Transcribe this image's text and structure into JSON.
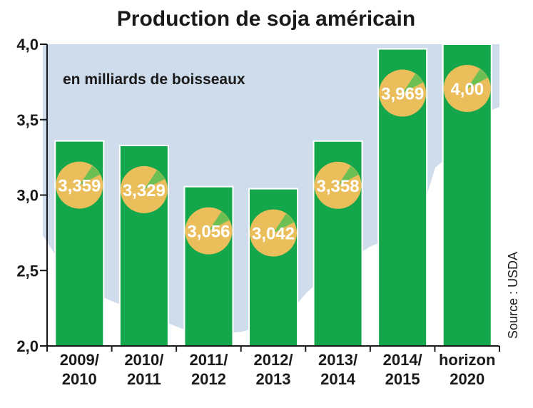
{
  "chart_data": {
    "type": "bar",
    "title": "Production de soja américain",
    "subtitle": "en milliards de boisseaux",
    "source": "Source : USDA",
    "categories": [
      [
        "2009/",
        "2010"
      ],
      [
        "2010/",
        "2011"
      ],
      [
        "2011/",
        "2012"
      ],
      [
        "2012/",
        "2013"
      ],
      [
        "2013/",
        "2014"
      ],
      [
        "2014/",
        "2015"
      ],
      [
        "horizon",
        "2020"
      ]
    ],
    "values": [
      3.359,
      3.329,
      3.056,
      3.042,
      3.358,
      3.969,
      4.0
    ],
    "value_labels": [
      "3,359",
      "3,329",
      "3,056",
      "3,042",
      "3,358",
      "3,969",
      "4,00"
    ],
    "ylim": [
      2.0,
      4.0
    ],
    "yticks": [
      {
        "value": 2.0,
        "label": "2,0"
      },
      {
        "value": 2.5,
        "label": "2,5"
      },
      {
        "value": 3.0,
        "label": "3,0"
      },
      {
        "value": 3.5,
        "label": "3,5"
      },
      {
        "value": 4.0,
        "label": "4,0"
      }
    ],
    "grid": false,
    "colors": {
      "bar": "#14a64a",
      "badge": "#ebbe5c",
      "map": "#cfdcec",
      "text": "#1a1a1a",
      "badge_text": "#ffffff"
    }
  }
}
